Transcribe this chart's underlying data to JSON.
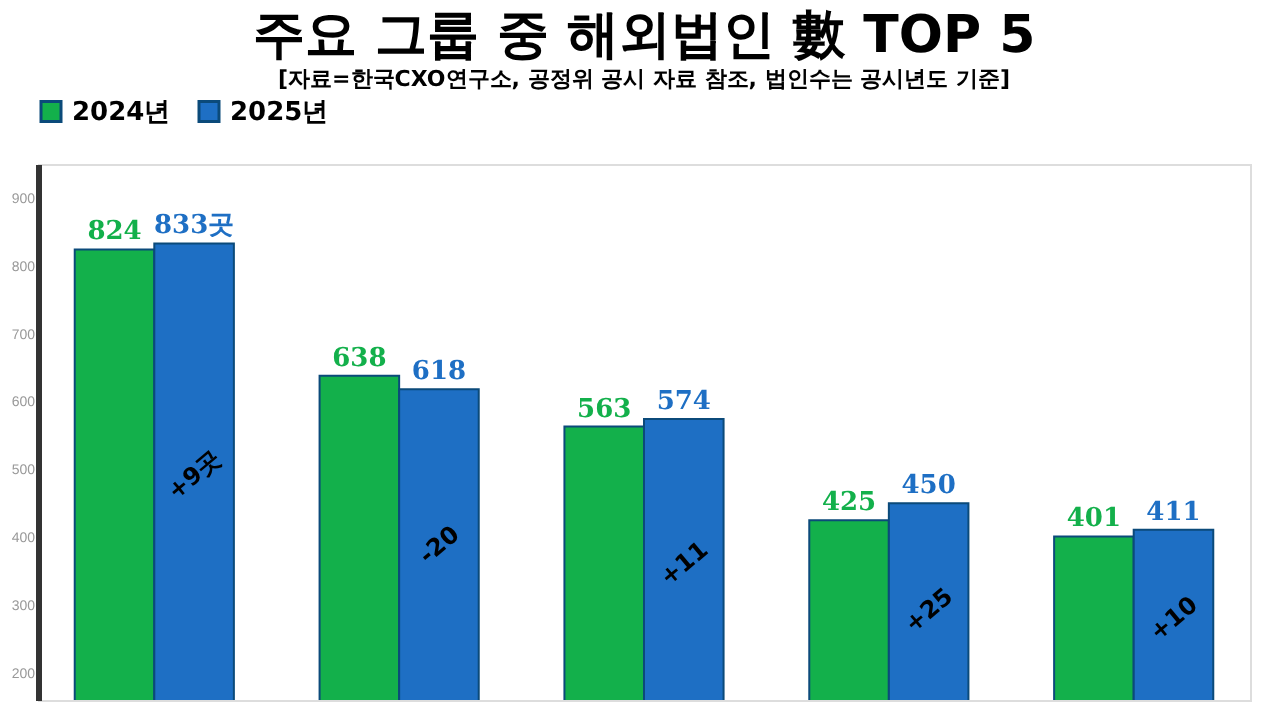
{
  "chart_data": {
    "type": "bar",
    "title": "주요 그룹 중 해외법인 數 TOP 5",
    "subtitle": "[자료=한국CXO연구소, 공정위 공시 자료 참조, 법인수는 공시년도 기준]",
    "categories": [
      null,
      null,
      null,
      null,
      null
    ],
    "series": [
      {
        "name": "2024년",
        "color": "#13b04b",
        "values": [
          824,
          638,
          563,
          425,
          401
        ],
        "value_labels": [
          "824",
          "638",
          "563",
          "425",
          "401"
        ]
      },
      {
        "name": "2025년",
        "color": "#1e6fc4",
        "values": [
          833,
          618,
          574,
          450,
          411
        ],
        "value_labels": [
          "833곳",
          "618",
          "574",
          "450",
          "411"
        ]
      }
    ],
    "annotations": [
      "+9곳",
      "-20",
      "+11",
      "+25",
      "+10"
    ],
    "ylim": [
      160,
      950
    ],
    "yticks": [
      200,
      300,
      400,
      500,
      600,
      700,
      800,
      900
    ],
    "tick_labels": "y",
    "grid": false,
    "legend": "top"
  }
}
